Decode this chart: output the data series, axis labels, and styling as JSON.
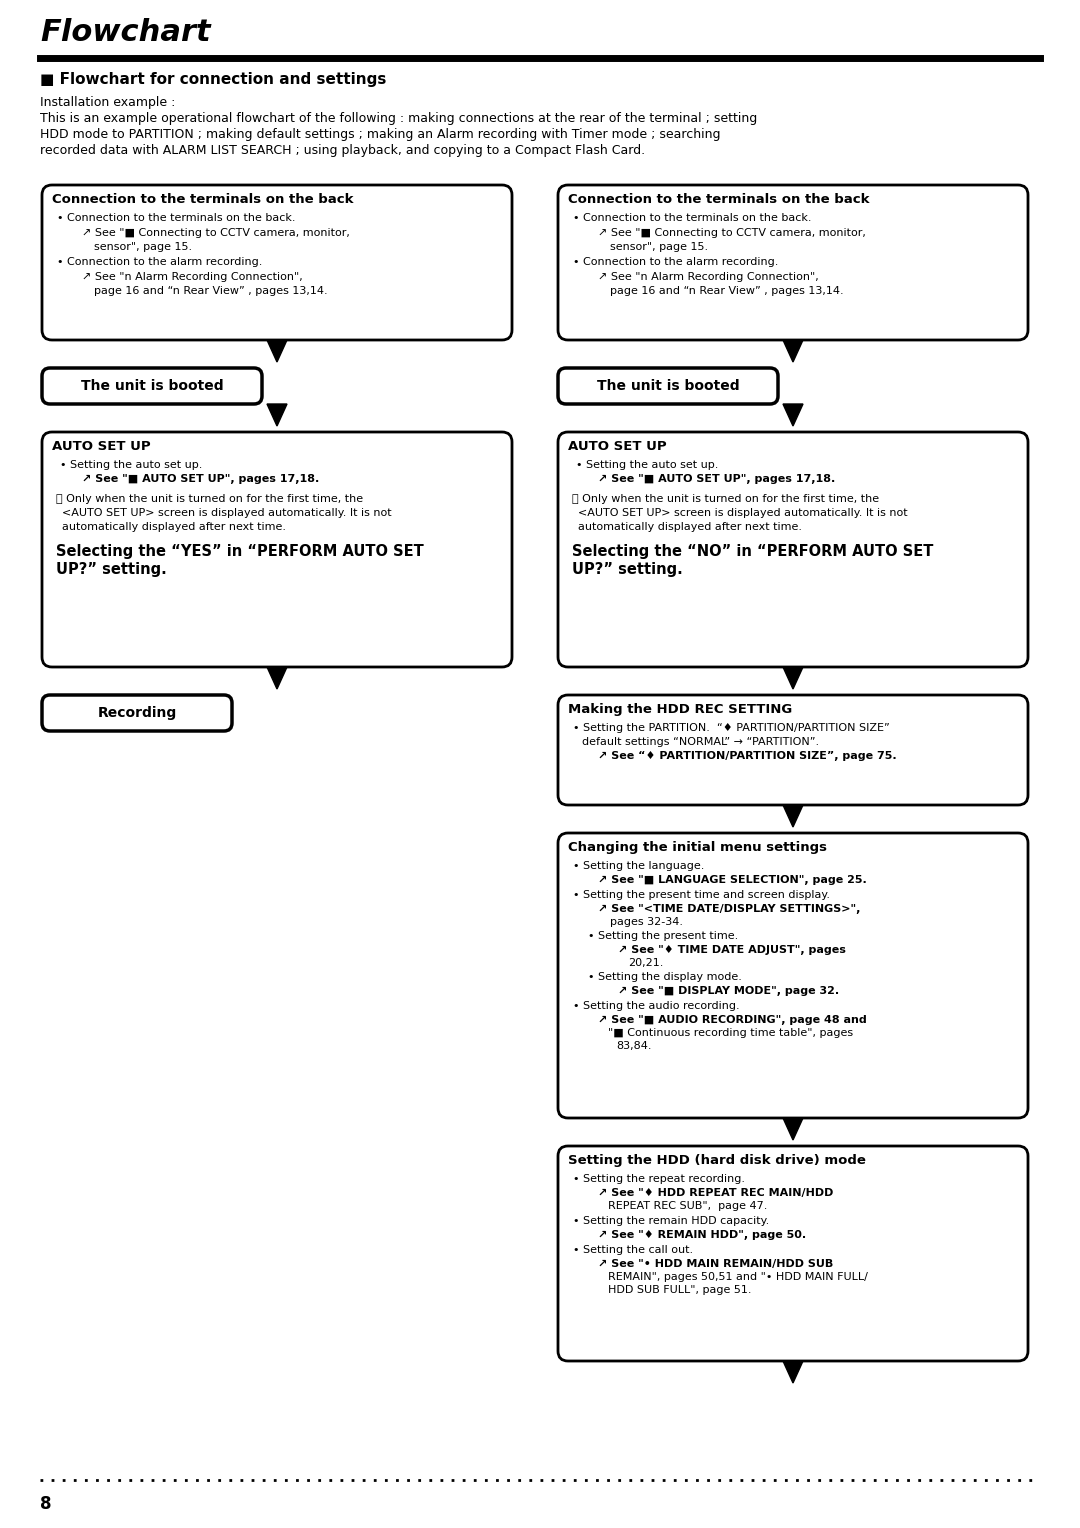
{
  "title": "Flowchart",
  "section_title": "■ Flowchart for connection and settings",
  "intro_line1": "Installation example :",
  "intro_line2": "This is an example operational flowchart of the following : making connections at the rear of the terminal ; setting",
  "intro_line3": "HDD mode to PARTITION ; making default settings ; making an Alarm recording with Timer mode ; searching",
  "intro_line4": "recorded data with ALARM LIST SEARCH ; using playback, and copying to a Compact Flash Card.",
  "bg_color": "#ffffff",
  "page_number": "8"
}
